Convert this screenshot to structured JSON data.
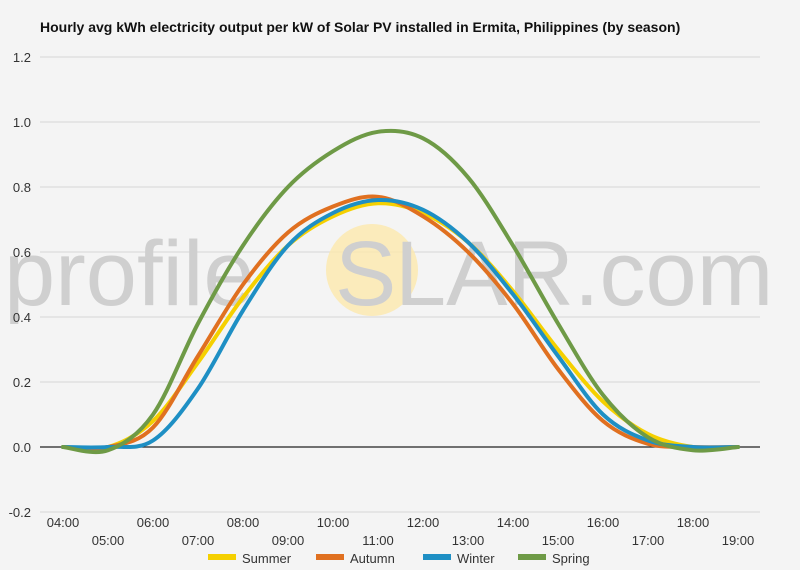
{
  "chart_data": {
    "type": "line",
    "title": "Hourly avg kWh electricity output per kW of Solar PV installed in Ermita, Philippines (by season)",
    "xlabel": "",
    "ylabel": "",
    "ylim": [
      -0.2,
      1.2
    ],
    "yticks": [
      "1.2",
      "1.0",
      "0.8",
      "0.6",
      "0.4",
      "0.2",
      "0.0",
      "-0.2"
    ],
    "ytick_values": [
      1.2,
      1.0,
      0.8,
      0.6,
      0.4,
      0.2,
      0.0,
      -0.2
    ],
    "x": [
      "04:00",
      "05:00",
      "06:00",
      "07:00",
      "08:00",
      "09:00",
      "10:00",
      "11:00",
      "12:00",
      "13:00",
      "14:00",
      "15:00",
      "16:00",
      "17:00",
      "18:00",
      "19:00"
    ],
    "grid": true,
    "legend": "bottom",
    "series": [
      {
        "name": "Summer",
        "color": "#f5d000",
        "values": [
          0.0,
          0.0,
          0.08,
          0.26,
          0.46,
          0.62,
          0.71,
          0.75,
          0.72,
          0.63,
          0.48,
          0.3,
          0.14,
          0.04,
          0.0,
          0.0
        ]
      },
      {
        "name": "Autumn",
        "color": "#e07020",
        "values": [
          0.0,
          0.0,
          0.06,
          0.28,
          0.5,
          0.66,
          0.74,
          0.77,
          0.71,
          0.6,
          0.44,
          0.24,
          0.08,
          0.01,
          0.0,
          0.0
        ]
      },
      {
        "name": "Winter",
        "color": "#1e8fc4",
        "values": [
          0.0,
          0.0,
          0.02,
          0.18,
          0.42,
          0.62,
          0.72,
          0.76,
          0.73,
          0.63,
          0.47,
          0.28,
          0.1,
          0.02,
          0.0,
          0.0
        ]
      },
      {
        "name": "Spring",
        "color": "#6e9a46",
        "values": [
          0.0,
          -0.01,
          0.1,
          0.38,
          0.62,
          0.8,
          0.91,
          0.97,
          0.95,
          0.83,
          0.62,
          0.38,
          0.16,
          0.03,
          -0.01,
          0.0
        ]
      }
    ]
  },
  "watermark": {
    "left": "profile",
    "sun_letter": "S",
    "right": "LAR.com"
  }
}
